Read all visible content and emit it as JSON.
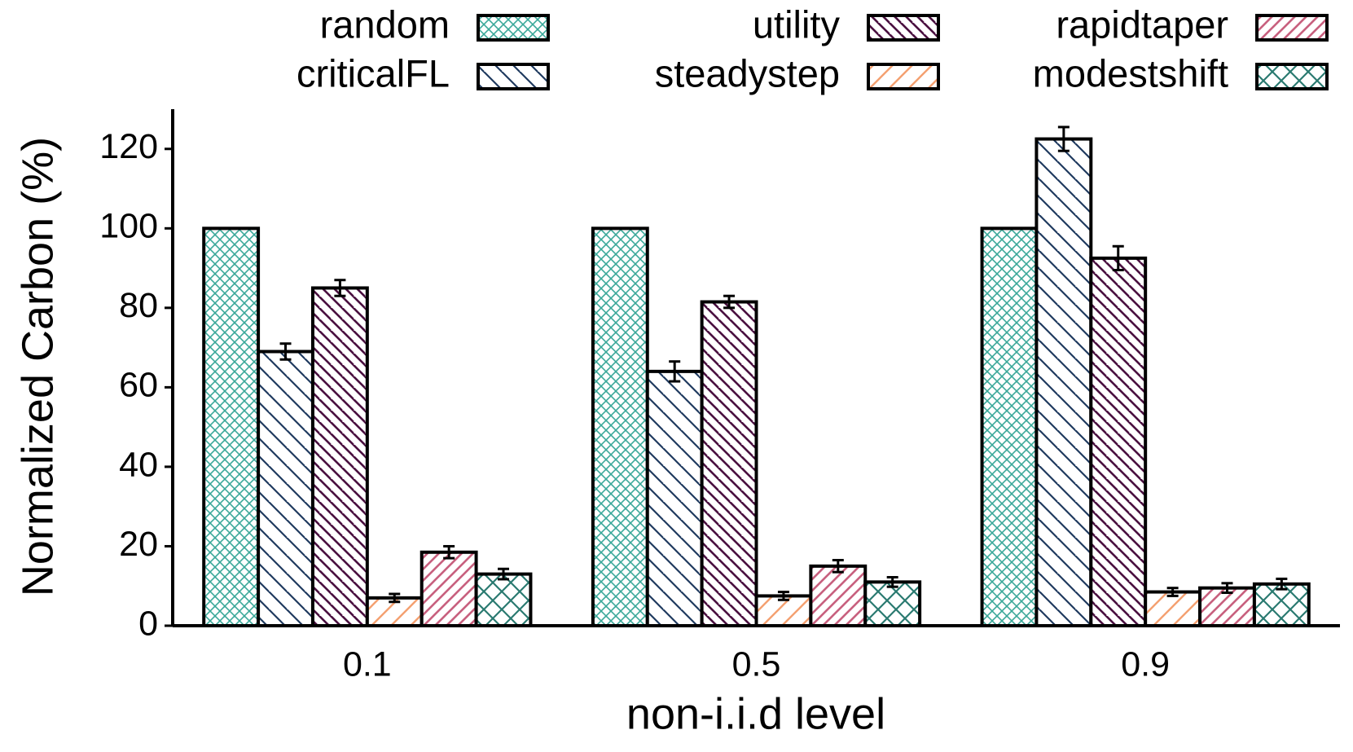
{
  "chart_data": {
    "type": "bar",
    "x_label": "non-i.i.d level",
    "y_label": "Normalized Carbon (%)",
    "categories": [
      "0.1",
      "0.5",
      "0.9"
    ],
    "series": [
      {
        "name": "random",
        "color": "#3aa89a",
        "hatch": "crosshatch",
        "values": [
          100,
          100,
          100
        ]
      },
      {
        "name": "criticalFL",
        "color": "#1f3a5f",
        "hatch": "backslash",
        "values": [
          69,
          64,
          122.5
        ],
        "errors": [
          2,
          2.5,
          3
        ]
      },
      {
        "name": "utility",
        "color": "#4a1040",
        "hatch": "backslash-dense",
        "values": [
          85,
          81.5,
          92.5
        ],
        "errors": [
          2,
          1.5,
          3
        ]
      },
      {
        "name": "steadystep",
        "color": "#f4a070",
        "hatch": "slash",
        "values": [
          7,
          7.5,
          8.5
        ],
        "errors": [
          1,
          1,
          1
        ]
      },
      {
        "name": "rapidtaper",
        "color": "#c8607e",
        "hatch": "slash-dense",
        "values": [
          18.5,
          15,
          9.5
        ],
        "errors": [
          1.5,
          1.5,
          1.2
        ]
      },
      {
        "name": "modestshift",
        "color": "#2a7a70",
        "hatch": "crosshatch-wide",
        "values": [
          13,
          11,
          10.5
        ],
        "errors": [
          1.3,
          1.2,
          1.3
        ]
      }
    ],
    "ylim": [
      0,
      130
    ],
    "yticks": [
      0,
      20,
      40,
      60,
      80,
      100,
      120
    ],
    "legend": "top"
  }
}
